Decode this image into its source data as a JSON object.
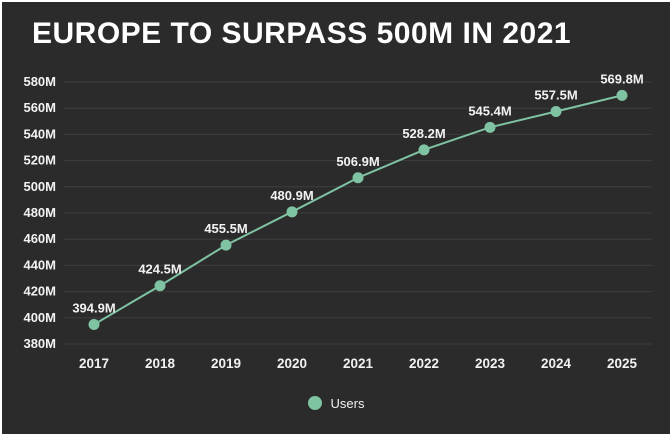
{
  "title": "EUROPE TO SURPASS 500M IN 2021",
  "legend": {
    "users_label": "Users"
  },
  "chart_data": {
    "type": "line",
    "title": "EUROPE TO SURPASS 500M IN 2021",
    "x": [
      "2017",
      "2018",
      "2019",
      "2020",
      "2021",
      "2022",
      "2023",
      "2024",
      "2025"
    ],
    "series": [
      {
        "name": "Users",
        "values": [
          394.9,
          424.5,
          455.5,
          480.9,
          506.9,
          528.2,
          545.4,
          557.5,
          569.8
        ]
      }
    ],
    "point_labels": [
      "394.9M",
      "424.5M",
      "455.5M",
      "480.9M",
      "506.9M",
      "528.2M",
      "545.4M",
      "557.5M",
      "569.8M"
    ],
    "xlabel": "",
    "ylabel": "",
    "ylim": [
      380,
      580
    ],
    "ytick_step": 20,
    "ytick_labels": [
      "380M",
      "400M",
      "420M",
      "440M",
      "460M",
      "480M",
      "500M",
      "520M",
      "540M",
      "560M",
      "580M"
    ],
    "grid": "horizontal",
    "legend_position": "bottom-center",
    "colors": {
      "background": "#2b2b2b",
      "line": "#7fc3a3",
      "grid": "#3e3e3e",
      "text": "#f2f2f2",
      "title": "#ffffff"
    }
  }
}
